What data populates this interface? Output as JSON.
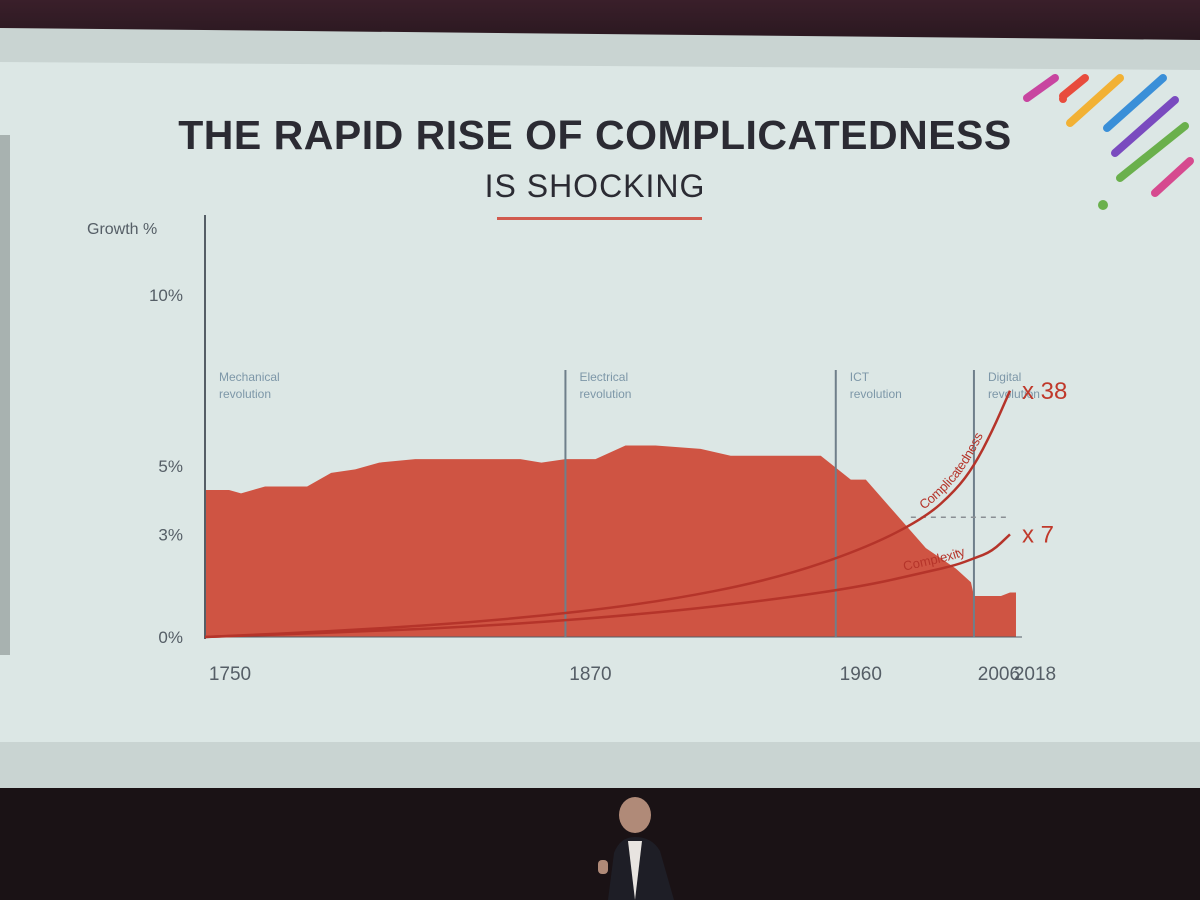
{
  "slide": {
    "title": "THE RAPID RISE OF COMPLICATEDNESS",
    "subtitle": "IS SHOCKING"
  },
  "colors": {
    "area": "#cf5443",
    "accent": "#c0392b",
    "text": "#2b2b33",
    "axis": "#555e66",
    "vline": "#6f7f8a"
  },
  "chart_data": {
    "type": "area",
    "ylabel": "Growth %",
    "ylim": [
      0,
      12
    ],
    "y_ticks": [
      {
        "value": 0,
        "label": "0%"
      },
      {
        "value": 3,
        "label": "3%"
      },
      {
        "value": 5,
        "label": "5%"
      },
      {
        "value": 10,
        "label": "10%"
      }
    ],
    "x_range": [
      1750,
      2022
    ],
    "x_ticks": [
      {
        "value": 1750,
        "label": "1750"
      },
      {
        "value": 1870,
        "label": "1870"
      },
      {
        "value": 1960,
        "label": "1960"
      },
      {
        "value": 2006,
        "label": "2006"
      },
      {
        "value": 2018,
        "label": "2018"
      }
    ],
    "eras": [
      {
        "x": 1750,
        "line1": "Mechanical",
        "line2": "revolution"
      },
      {
        "x": 1870,
        "line1": "Electrical",
        "line2": "revolution"
      },
      {
        "x": 1960,
        "line1": "ICT",
        "line2": "revolution"
      },
      {
        "x": 2006,
        "line1": "Digital",
        "line2": "revolution"
      }
    ],
    "series": [
      {
        "name": "Growth",
        "x": [
          1750,
          1758,
          1762,
          1770,
          1778,
          1784,
          1792,
          1800,
          1808,
          1820,
          1835,
          1845,
          1855,
          1862,
          1870,
          1880,
          1890,
          1900,
          1915,
          1925,
          1940,
          1955,
          1965,
          1970,
          1980,
          1990,
          2000,
          2005,
          2006,
          2010,
          2015,
          2018
        ],
        "values": [
          4.3,
          4.3,
          4.2,
          4.4,
          4.4,
          4.4,
          4.8,
          4.9,
          5.1,
          5.2,
          5.2,
          5.2,
          5.2,
          5.1,
          5.2,
          5.2,
          5.6,
          5.6,
          5.5,
          5.3,
          5.3,
          5.3,
          4.6,
          4.6,
          3.6,
          2.6,
          2.0,
          1.6,
          1.2,
          1.2,
          1.2,
          1.3
        ]
      },
      {
        "name": "Complicatedness",
        "x": [
          1750,
          1800,
          1850,
          1900,
          1940,
          1970,
          1990,
          2000,
          2006,
          2012,
          2018
        ],
        "values": [
          0.0,
          0.2,
          0.5,
          1.0,
          1.7,
          2.6,
          3.5,
          4.3,
          5.0,
          6.0,
          7.2
        ]
      },
      {
        "name": "Complexity",
        "x": [
          1750,
          1800,
          1850,
          1900,
          1940,
          1970,
          1990,
          2000,
          2006,
          2012,
          2018
        ],
        "values": [
          0.0,
          0.15,
          0.35,
          0.7,
          1.1,
          1.5,
          1.9,
          2.1,
          2.3,
          2.5,
          3.0
        ]
      }
    ],
    "reference_line": {
      "value": 3.5,
      "from_x": 1985,
      "to_x": 2018,
      "style": "dashed"
    },
    "annotations": [
      {
        "series": "Complicatedness",
        "label": "x 38"
      },
      {
        "series": "Complexity",
        "label": "x 7"
      }
    ]
  }
}
